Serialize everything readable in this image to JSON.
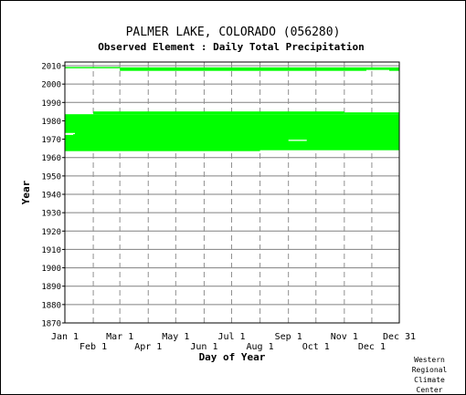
{
  "chart_data": {
    "type": "heatmap",
    "title": "PALMER LAKE, COLORADO   (056280)",
    "subtitle": "Observed Element : Daily Total Precipitation",
    "xlabel": "Day of Year",
    "ylabel": "Year",
    "ylim": [
      1870,
      2012
    ],
    "yticks": [
      1870,
      1880,
      1890,
      1900,
      1910,
      1920,
      1930,
      1940,
      1950,
      1960,
      1970,
      1980,
      1990,
      2000,
      2010
    ],
    "xlim": [
      1,
      366
    ],
    "xticks": [
      {
        "label": "Jan 1",
        "day": 1
      },
      {
        "label": "Feb 1",
        "day": 32
      },
      {
        "label": "Mar 1",
        "day": 61
      },
      {
        "label": "Apr 1",
        "day": 92
      },
      {
        "label": "May 1",
        "day": 122
      },
      {
        "label": "Jun 1",
        "day": 153
      },
      {
        "label": "Jul 1",
        "day": 183
      },
      {
        "label": "Aug 1",
        "day": 214
      },
      {
        "label": "Sep 1",
        "day": 245
      },
      {
        "label": "Oct 1",
        "day": 275
      },
      {
        "label": "Nov 1",
        "day": 306
      },
      {
        "label": "Dec 1",
        "day": 336
      },
      {
        "label": "Dec 31",
        "day": 366
      }
    ],
    "grid": true,
    "color": "#00ff00",
    "data_blocks": [
      {
        "year_start": 1963.5,
        "year_end": 1983.6,
        "day_start": 1,
        "day_end": 366
      },
      {
        "year_start": 1983.6,
        "year_end": 1985.1,
        "day_start": 32,
        "day_end": 306
      },
      {
        "year_start": 1983.6,
        "year_end": 1984.6,
        "day_start": 306,
        "day_end": 366
      },
      {
        "year_start": 2007.2,
        "year_end": 2009.1,
        "day_start": 61,
        "day_end": 366
      },
      {
        "year_start": 2008.6,
        "year_end": 2009.3,
        "day_start": 1,
        "day_end": 61
      }
    ],
    "gaps": [
      {
        "year": 1963.7,
        "day_start": 214,
        "day_end": 366
      },
      {
        "year": 1972.7,
        "day_start": 1,
        "day_end": 10
      },
      {
        "year": 1973.1,
        "day_start": 1,
        "day_end": 12
      },
      {
        "year": 1969.4,
        "day_start": 245,
        "day_end": 265
      },
      {
        "year": 2007.4,
        "day_start": 330,
        "day_end": 355
      }
    ]
  },
  "footer": {
    "credit_lines": [
      "Western",
      "Regional",
      "Climate",
      "Center"
    ]
  }
}
